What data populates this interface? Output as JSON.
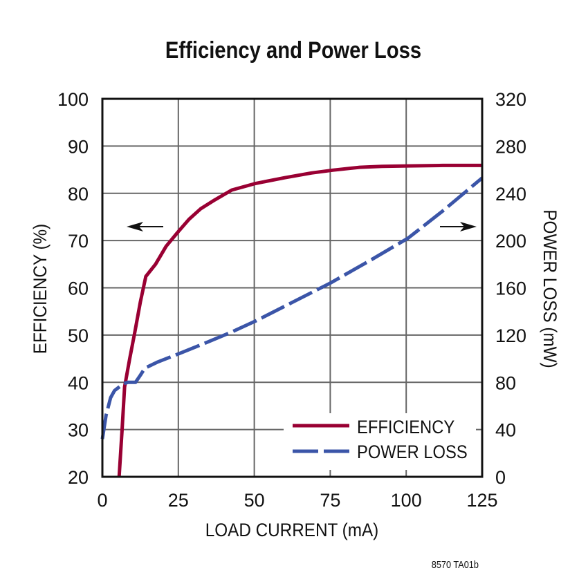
{
  "chart_data": {
    "type": "line",
    "title": "Efficiency and Power Loss",
    "xlabel": "LOAD CURRENT (mA)",
    "ylabel": "EFFICIENCY (%)",
    "y2label": "POWER LOSS (mW)",
    "xlim": [
      0,
      125
    ],
    "ylim": [
      20,
      100
    ],
    "y2lim": [
      0,
      320
    ],
    "xticks": [
      0,
      25,
      50,
      75,
      100,
      125
    ],
    "yticks": [
      20,
      30,
      40,
      50,
      60,
      70,
      80,
      90,
      100
    ],
    "y2ticks": [
      0,
      40,
      80,
      120,
      160,
      200,
      240,
      280,
      320
    ],
    "grid": true,
    "legend_placement": "bottom-right",
    "series": [
      {
        "name": "EFFICIENCY",
        "axis": "left",
        "color": "#990033",
        "style": "solid",
        "x": [
          5.5,
          6.5,
          7.3,
          9,
          10.7,
          12.5,
          14.3,
          17.5,
          21,
          25,
          28.5,
          32.3,
          37,
          42.6,
          50.5,
          60,
          68.8,
          76,
          84.7,
          92,
          100.6,
          112,
          125
        ],
        "y": [
          20,
          30,
          39,
          45,
          50.7,
          57,
          62.4,
          65,
          68.8,
          71.9,
          74.5,
          76.7,
          78.6,
          80.7,
          82.1,
          83.3,
          84.3,
          84.9,
          85.5,
          85.7,
          85.8,
          85.9,
          85.9
        ]
      },
      {
        "name": "POWER LOSS",
        "axis": "right",
        "color": "#3b55a8",
        "style": "dashed",
        "x": [
          0,
          1.2,
          2.7,
          4,
          5.5,
          7,
          8.4,
          10.9,
          12.5,
          14,
          18,
          25,
          34.6,
          42,
          50.5,
          62,
          75,
          88,
          100.6,
          112,
          125
        ],
        "y": [
          32,
          52,
          67,
          73,
          76,
          79,
          80,
          80,
          86,
          92,
          97,
          104,
          114,
          122,
          132,
          147,
          164,
          183,
          202,
          225,
          253
        ]
      }
    ],
    "annotations": {
      "left_arrow": "points to left axis (efficiency)",
      "right_arrow": "points to right axis (power loss)"
    },
    "footnote": "8570 TA01b"
  }
}
